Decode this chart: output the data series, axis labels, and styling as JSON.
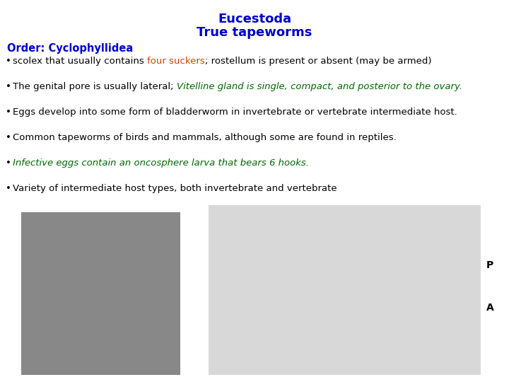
{
  "title_line1": "Eucestoda",
  "title_line2": "True tapeworms",
  "title_color": "#0000CC",
  "title_fontsize": 13,
  "order_label": "Order: Cyclophyllidea",
  "order_color": "#0000CC",
  "order_fontsize": 10.5,
  "bullets": [
    {
      "text_parts": [
        {
          "text": "scolex that usually contains ",
          "color": "#000000",
          "style": "normal"
        },
        {
          "text": "four suckers",
          "color": "#CC4400",
          "style": "normal"
        },
        {
          "text": "; rostellum is present or absent (may be armed)",
          "color": "#000000",
          "style": "normal"
        }
      ]
    },
    {
      "text_parts": [
        {
          "text": "The genital pore is usually lateral; ",
          "color": "#000000",
          "style": "normal"
        },
        {
          "text": "Vitelline gland is single, compact, and posterior to the ovary.",
          "color": "#006600",
          "style": "italic"
        }
      ]
    },
    {
      "text_parts": [
        {
          "text": "Eggs develop into some form of bladderworm in invertebrate or vertebrate intermediate host.",
          "color": "#000000",
          "style": "normal"
        }
      ]
    },
    {
      "text_parts": [
        {
          "text": "Common tapeworms of birds and mammals, although some are found in reptiles.",
          "color": "#000000",
          "style": "normal"
        }
      ]
    },
    {
      "text_parts": [
        {
          "text": "Infective eggs contain an oncosphere larva that bears 6 hooks.",
          "color": "#006600",
          "style": "italic"
        }
      ]
    },
    {
      "text_parts": [
        {
          "text": "Variety of intermediate host types, both invertebrate and vertebrate",
          "color": "#000000",
          "style": "normal"
        }
      ]
    }
  ],
  "bullet_fontsize": 9.5,
  "bg_color": "#FFFFFF",
  "p_label": "P",
  "a_label": "A",
  "p_label_fontsize": 10
}
